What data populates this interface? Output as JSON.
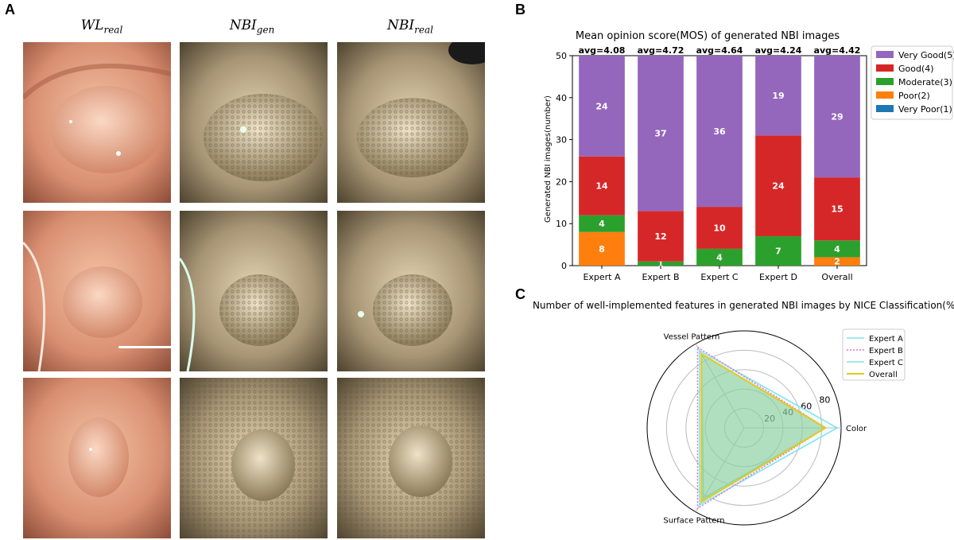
{
  "panels": {
    "a": "A",
    "b": "B",
    "c": "C"
  },
  "panel_a": {
    "columns": [
      {
        "base": "WL",
        "sub": "real"
      },
      {
        "base": "NBI",
        "sub": "gen"
      },
      {
        "base": "NBI",
        "sub": "real"
      }
    ]
  },
  "chart_data": [
    {
      "type": "bar",
      "stacked": true,
      "title": "Mean opinion score(MOS) of generated NBI images",
      "xlabel": "",
      "ylabel": "Generated NBI images(number)",
      "ylim": [
        0,
        50
      ],
      "yticks": [
        0,
        10,
        20,
        30,
        40,
        50
      ],
      "categories": [
        "Expert A",
        "Expert B",
        "Expert C",
        "Expert D",
        "Overall"
      ],
      "averages": [
        "avg=4.08",
        "avg=4.72",
        "avg=4.64",
        "avg=4.24",
        "avg=4.42"
      ],
      "series": [
        {
          "name": "Very Poor(1)",
          "color": "#1f77b4",
          "values": [
            0,
            0,
            0,
            0,
            0
          ]
        },
        {
          "name": "Poor(2)",
          "color": "#ff7f0e",
          "values": [
            8,
            0,
            0,
            0,
            2
          ]
        },
        {
          "name": "Moderate(3)",
          "color": "#2ca02c",
          "values": [
            4,
            1,
            4,
            7,
            4
          ]
        },
        {
          "name": "Good(4)",
          "color": "#d62728",
          "values": [
            14,
            12,
            10,
            24,
            15
          ]
        },
        {
          "name": "Very Good(5)",
          "color": "#9467bd",
          "values": [
            24,
            37,
            36,
            19,
            29
          ]
        }
      ],
      "legend_order": [
        "Very Good(5)",
        "Good(4)",
        "Moderate(3)",
        "Poor(2)",
        "Very Poor(1)"
      ],
      "legend_position": "outside-right"
    },
    {
      "type": "radar",
      "title": "Number of well-implemented features in generated NBI images by NICE Classification(%)",
      "axes": [
        "Color",
        "Vessel Pattern",
        "Surface Pattern"
      ],
      "rmax": 100,
      "rticks": [
        20,
        40,
        60,
        80
      ],
      "series": [
        {
          "name": "Expert A",
          "color": "#7fe3f0",
          "style": "solid",
          "values": [
            96,
            92,
            92
          ]
        },
        {
          "name": "Expert B",
          "color": "#e377c2",
          "style": "dotted",
          "values": [
            84,
            96,
            96
          ]
        },
        {
          "name": "Expert C",
          "color": "#7fe3e0",
          "style": "solid",
          "values": [
            84,
            88,
            84
          ]
        },
        {
          "name": "Overall",
          "color": "#e8c81a",
          "style": "solid",
          "values": [
            84,
            88,
            88
          ]
        }
      ],
      "legend_position": "top-right"
    }
  ]
}
